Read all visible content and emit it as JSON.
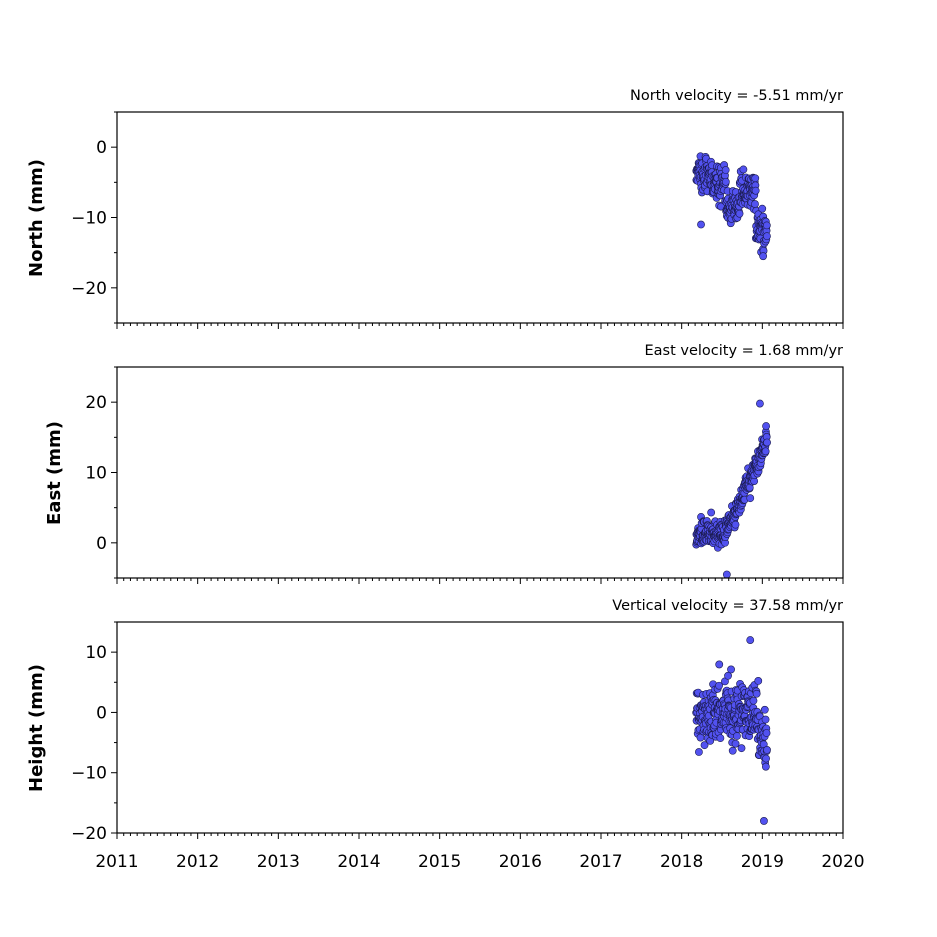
{
  "chart_data": {
    "type": "scatter",
    "xlim": [
      2011,
      2020
    ],
    "xticks": [
      2011,
      2012,
      2013,
      2014,
      2015,
      2016,
      2017,
      2018,
      2019,
      2020
    ],
    "grid": false,
    "marker_color": "#5252f0",
    "marker_edge_color": "#1a1a4d",
    "panels": [
      {
        "id": "north",
        "title": "North velocity = -5.51 mm/yr",
        "ylabel": "North (mm)",
        "ylim": [
          -25,
          5
        ],
        "yticks": [
          0,
          -10,
          -20
        ],
        "ytick_labels": [
          "0",
          "−10",
          "−20"
        ],
        "series": [
          {
            "x": [],
            "y": []
          }
        ]
      },
      {
        "id": "east",
        "title": "East velocity = 1.68 mm/yr",
        "ylabel": "East (mm)",
        "ylim": [
          -5,
          25
        ],
        "yticks": [
          20,
          10,
          0
        ],
        "ytick_labels": [
          "20",
          "10",
          "0"
        ],
        "series": [
          {
            "x": [],
            "y": []
          }
        ]
      },
      {
        "id": "height",
        "title": "Vertical velocity = 37.58 mm/yr",
        "ylabel": "Height (mm)",
        "ylim": [
          -20,
          15
        ],
        "yticks": [
          10,
          0,
          -10,
          -20
        ],
        "ytick_labels": [
          "10",
          "0",
          "−10",
          "−20"
        ],
        "series": [
          {
            "x": [],
            "y": []
          }
        ]
      }
    ]
  }
}
